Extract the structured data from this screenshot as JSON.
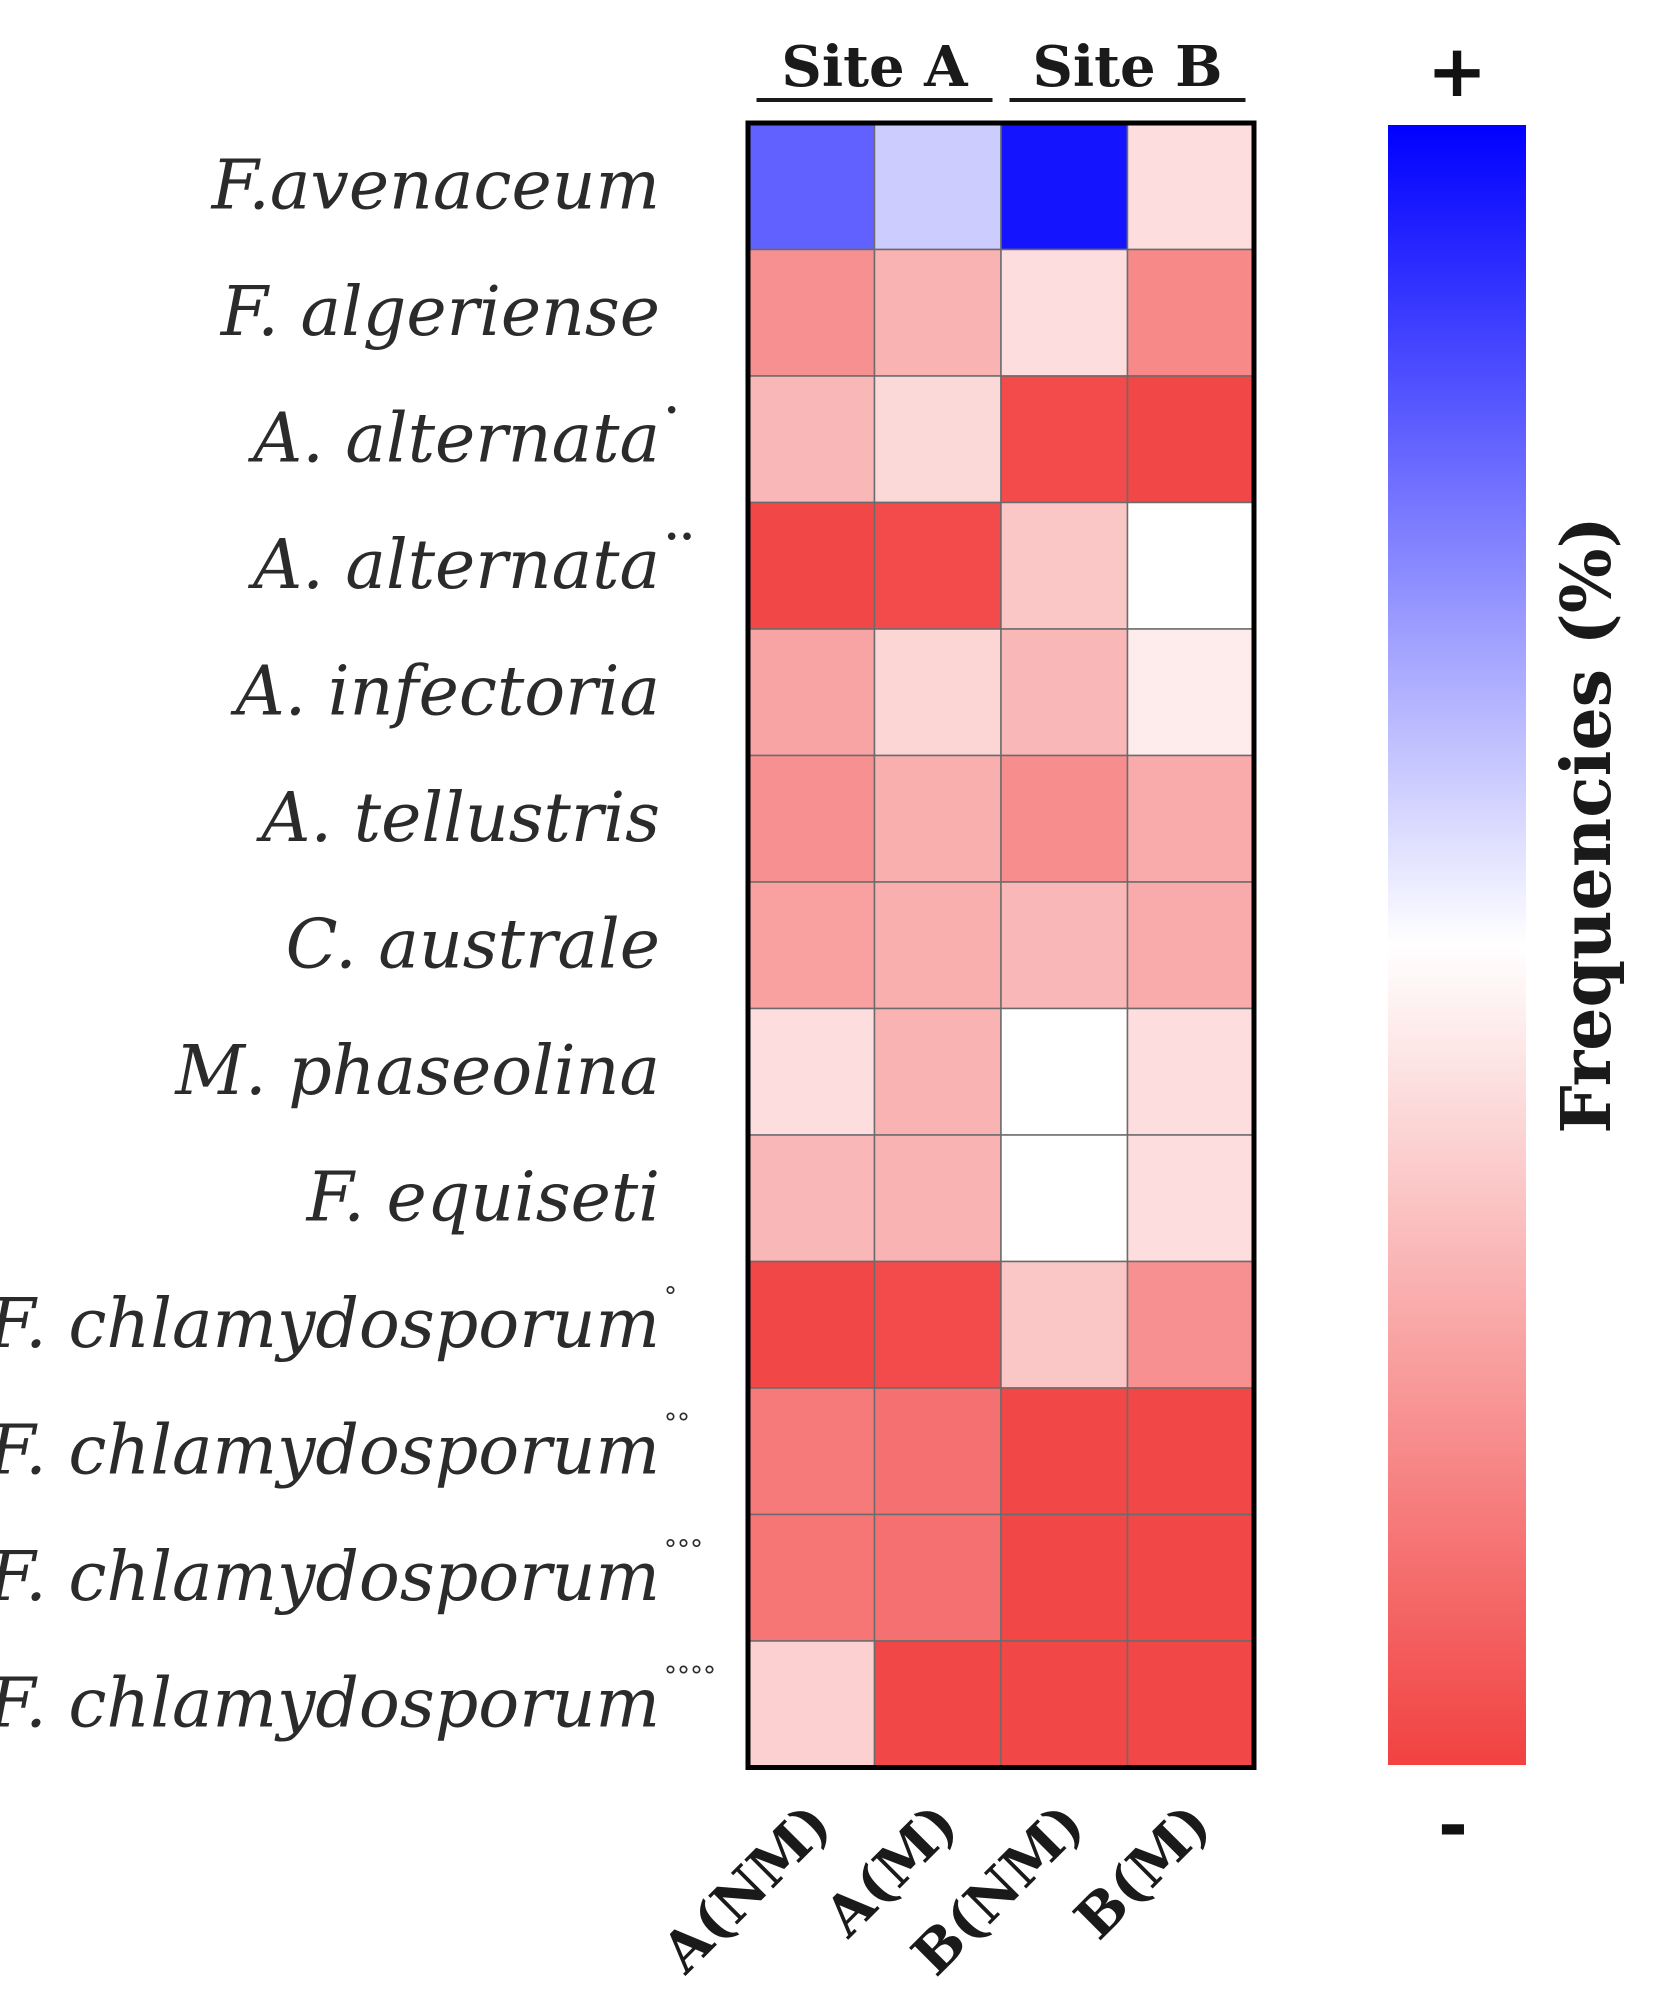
{
  "chart_data": {
    "type": "heatmap",
    "title": "",
    "site_labels": [
      "Site  A",
      "Site  B"
    ],
    "columns": [
      "A(NM)",
      "A(M)",
      "B(NM)",
      "B(M)"
    ],
    "rows": [
      {
        "label": "F.avenaceum",
        "sup": ""
      },
      {
        "label": "F. algeriense",
        "sup": ""
      },
      {
        "label": "A. alternata",
        "sup": "•"
      },
      {
        "label": "A. alternata",
        "sup": "••"
      },
      {
        "label": "A. infectoria",
        "sup": ""
      },
      {
        "label": "A. tellustris",
        "sup": ""
      },
      {
        "label": "C. australe",
        "sup": ""
      },
      {
        "label": "M. phaseolina",
        "sup": ""
      },
      {
        "label": "F. equiseti",
        "sup": ""
      },
      {
        "label": "F. chlamydosporum",
        "sup": "°"
      },
      {
        "label": "F. chlamydosporum",
        "sup": "°°"
      },
      {
        "label": "F. chlamydosporum",
        "sup": "°°°"
      },
      {
        "label": "F. chlamydosporum",
        "sup": "°°°°"
      }
    ],
    "values": [
      [
        0.62,
        0.2,
        0.92,
        -0.18
      ],
      [
        -0.58,
        -0.4,
        -0.18,
        -0.62
      ],
      [
        -0.38,
        -0.2,
        -0.95,
        -0.97
      ],
      [
        -0.97,
        -0.95,
        -0.3,
        0.0
      ],
      [
        -0.48,
        -0.22,
        -0.38,
        -0.1
      ],
      [
        -0.58,
        -0.42,
        -0.6,
        -0.45
      ],
      [
        -0.5,
        -0.42,
        -0.38,
        -0.45
      ],
      [
        -0.18,
        -0.4,
        0.0,
        -0.18
      ],
      [
        -0.38,
        -0.4,
        0.0,
        -0.18
      ],
      [
        -0.97,
        -0.95,
        -0.3,
        -0.58
      ],
      [
        -0.7,
        -0.75,
        -0.97,
        -0.97
      ],
      [
        -0.72,
        -0.75,
        -0.97,
        -0.97
      ],
      [
        -0.25,
        -0.97,
        -0.97,
        -0.97
      ]
    ],
    "value_range": [
      -1,
      1
    ],
    "colors": {
      "high": "#0000ff",
      "mid": "#ffffff",
      "low": "#f24141"
    },
    "legend": {
      "title": "Frequencies (%)",
      "high_label": "+",
      "low_label": "-"
    },
    "grid": true
  }
}
